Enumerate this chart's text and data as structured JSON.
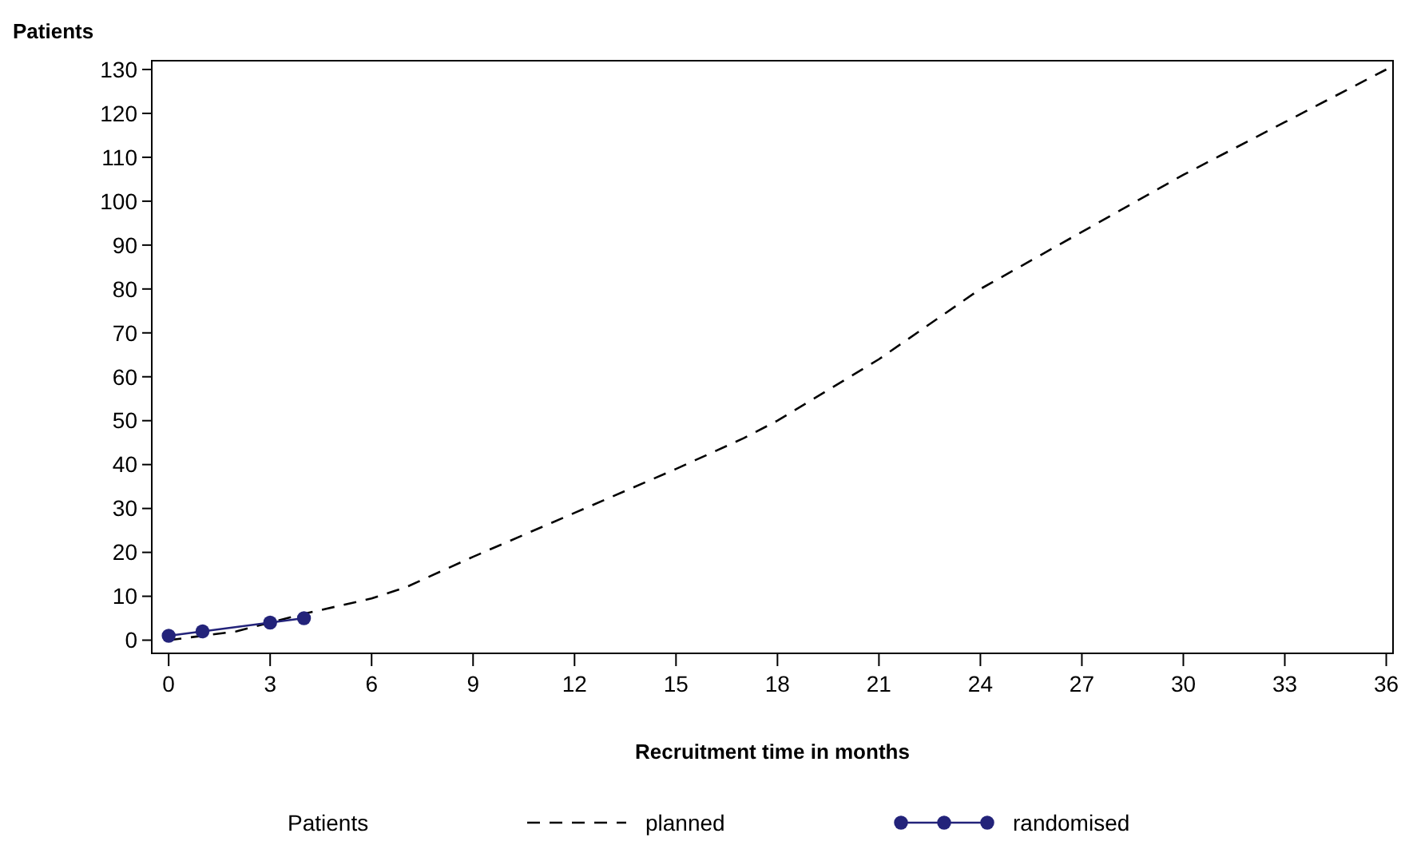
{
  "chart_data": {
    "type": "line",
    "xlabel": "Recruitment time in months",
    "ylabel": "Patients",
    "legend_title": "Patients",
    "legend": "bottom",
    "grid": false,
    "xlim": [
      -0.5,
      36.2
    ],
    "xticks": [
      0,
      3,
      6,
      9,
      12,
      15,
      18,
      21,
      24,
      27,
      30,
      33,
      36
    ],
    "ylim": [
      -3,
      132
    ],
    "yticks": [
      0,
      10,
      20,
      30,
      40,
      50,
      60,
      70,
      80,
      90,
      100,
      110,
      120,
      130
    ],
    "series": [
      {
        "name": "planned",
        "color": "#000000",
        "line_style": "dashed",
        "marker": "none",
        "x": [
          0,
          2,
          3,
          4,
          6,
          7,
          9,
          12,
          15,
          17,
          18,
          21,
          22.5,
          24,
          27,
          30,
          33,
          36
        ],
        "values": [
          0,
          2,
          4,
          6,
          9.5,
          12,
          19,
          29,
          39,
          46,
          50,
          64,
          72,
          80,
          93,
          106,
          118,
          130
        ]
      },
      {
        "name": "randomised",
        "color": "#23237a",
        "line_style": "solid",
        "marker": "circle",
        "x": [
          0,
          1,
          3,
          4
        ],
        "values": [
          1,
          2,
          4,
          5
        ]
      }
    ]
  }
}
